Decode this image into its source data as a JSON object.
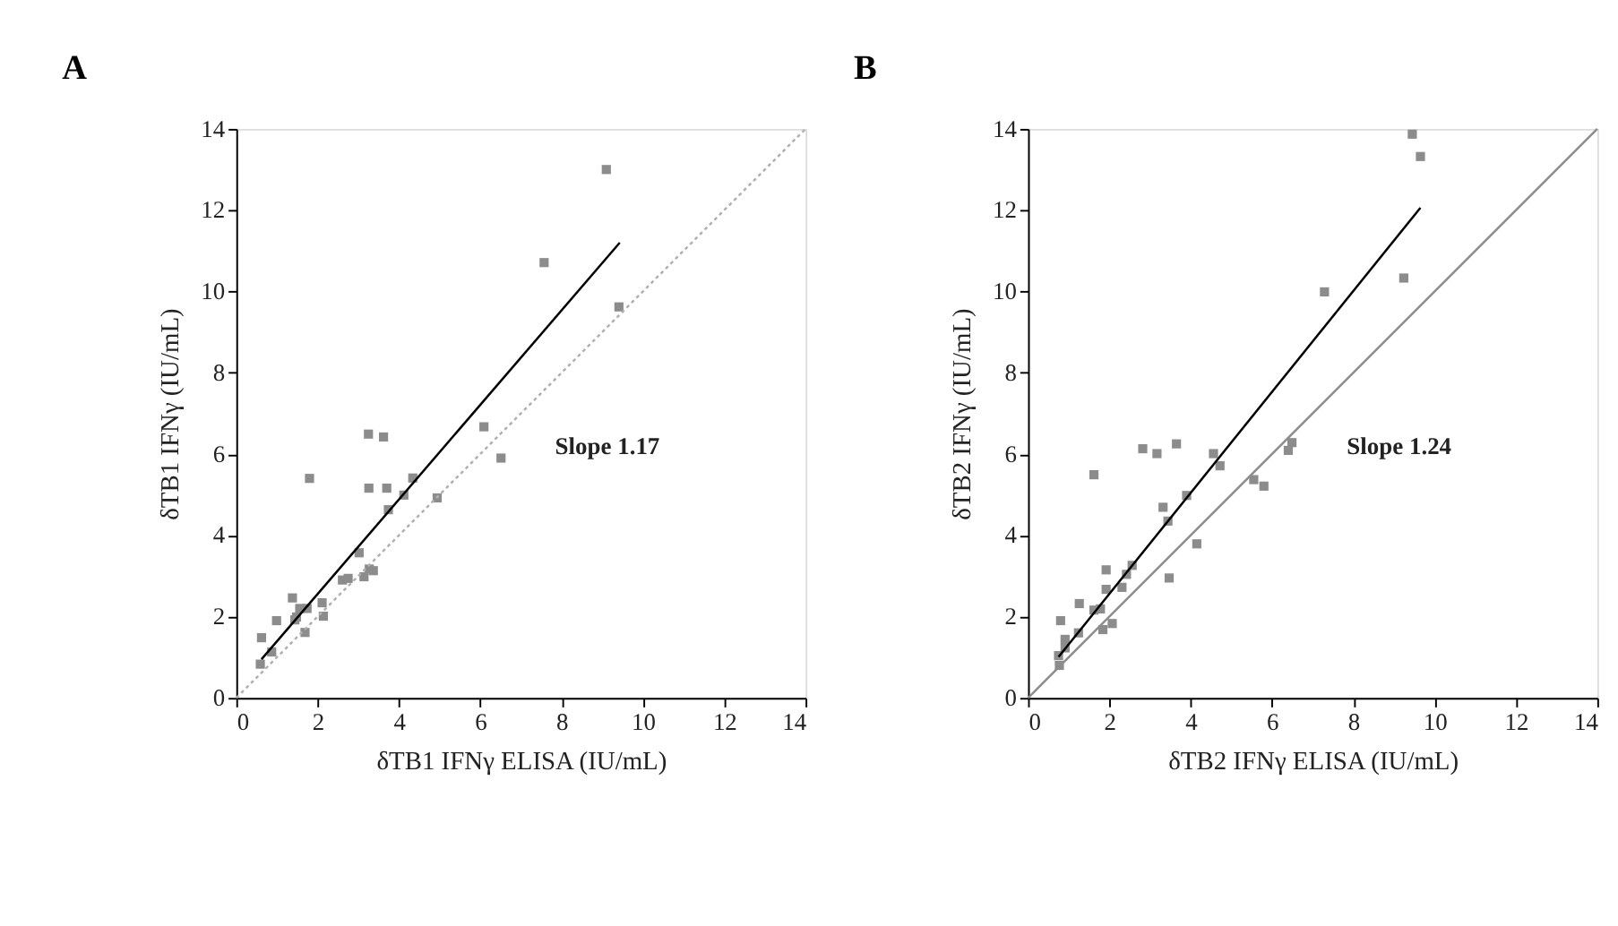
{
  "chart_data": [
    {
      "type": "scatter",
      "title": "A",
      "xlabel": "δTB1 IFNγ ELISA (IU/mL)",
      "ylabel": "δTB1 IFNγ (IU/mL)",
      "xlim": [
        0,
        14
      ],
      "ylim": [
        0,
        14
      ],
      "xticks": [
        0,
        2,
        4,
        6,
        8,
        10,
        12,
        14
      ],
      "yticks": [
        0,
        2,
        4,
        6,
        8,
        10,
        12,
        14
      ],
      "grid": false,
      "marker": "square",
      "series": [
        {
          "color": "#8c8c8c",
          "x": [
            9.1,
            7.57,
            9.41,
            6.09,
            6.51,
            3.25,
            3.62,
            1.8,
            3.26,
            3.7,
            4.34,
            4.12,
            4.94,
            3.74,
            3.02,
            2.61,
            2.75,
            3.14,
            3.27,
            3.37,
            1.38,
            2.11,
            2.14,
            1.56,
            1.74,
            1.48,
            1.44,
            0.99,
            1.69,
            0.62,
            0.87,
            0.59
          ],
          "values": [
            13.0,
            10.71,
            9.62,
            6.67,
            5.9,
            6.49,
            6.42,
            5.4,
            5.16,
            5.16,
            5.41,
            4.99,
            4.92,
            4.63,
            3.57,
            2.9,
            2.94,
            2.98,
            3.17,
            3.13,
            2.46,
            2.34,
            2.01,
            2.2,
            2.2,
            1.99,
            1.92,
            1.9,
            1.61,
            1.48,
            1.13,
            0.83
          ]
        },
        {
          "type": "line",
          "color": "#000000",
          "line_style": "solid",
          "marker": "none",
          "x": [
            0.62,
            9.43
          ],
          "values": [
            0.95,
            11.2
          ]
        },
        {
          "type": "line",
          "color": "#b0b0b0",
          "line_style": "dotted",
          "marker": "none",
          "x": [
            0,
            14
          ],
          "values": [
            0,
            14
          ]
        }
      ],
      "annotations": [
        "Slope 1.17"
      ]
    },
    {
      "type": "scatter",
      "title": "B",
      "xlabel": "δTB2 IFNγ ELISA (IU/mL)",
      "ylabel": "δTB2 IFNγ (IU/mL)",
      "xlim": [
        0,
        14
      ],
      "ylim": [
        0,
        14
      ],
      "xticks": [
        0,
        2,
        4,
        6,
        8,
        10,
        12,
        14
      ],
      "yticks": [
        0,
        2,
        4,
        6,
        8,
        10,
        12,
        14
      ],
      "grid": false,
      "marker": "square",
      "series": [
        {
          "color": "#8c8c8c",
          "x": [
            9.45,
            9.65,
            9.24,
            7.29,
            6.4,
            6.49,
            5.55,
            5.8,
            4.56,
            4.72,
            3.65,
            2.82,
            3.17,
            1.62,
            3.9,
            3.32,
            3.44,
            4.15,
            3.47,
            2.56,
            2.42,
            2.31,
            1.92,
            1.92,
            1.62,
            1.78,
            1.26,
            1.84,
            2.07,
            0.8,
            1.24,
            0.91,
            0.91,
            0.75,
            0.77
          ],
          "values": [
            13.87,
            13.32,
            10.33,
            9.99,
            6.09,
            6.28,
            5.37,
            5.21,
            6.01,
            5.71,
            6.25,
            6.13,
            6.01,
            5.49,
            4.98,
            4.69,
            4.35,
            3.79,
            2.95,
            3.26,
            3.04,
            2.72,
            3.15,
            2.67,
            2.16,
            2.19,
            2.32,
            1.68,
            1.83,
            1.9,
            1.6,
            1.44,
            1.23,
            1.04,
            0.8
          ]
        },
        {
          "type": "line",
          "color": "#000000",
          "line_style": "solid",
          "marker": "none",
          "x": [
            0.75,
            9.65
          ],
          "values": [
            1.01,
            12.06
          ]
        },
        {
          "type": "line",
          "color": "#8c8c8c",
          "line_style": "solid",
          "marker": "none",
          "x": [
            0,
            14
          ],
          "values": [
            0,
            14
          ]
        }
      ],
      "annotations": [
        "Slope 1.24"
      ]
    }
  ]
}
